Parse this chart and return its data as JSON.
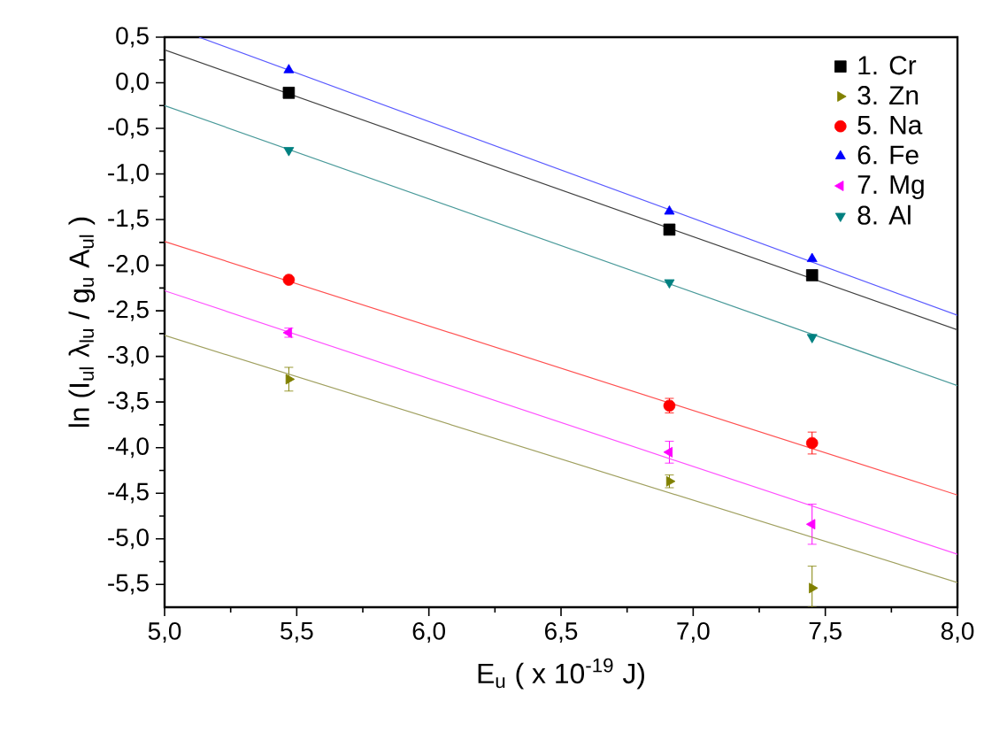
{
  "chart_data": {
    "type": "scatter",
    "xlabel": "E$_{u}$ ( x 10$^{-19}$ J)",
    "ylabel": "ln (I$_{ul}$ λ$_{lu}$ / g$_{u}$ A$_{ul}$ )",
    "xlim": [
      5.0,
      8.0
    ],
    "ylim": [
      -5.75,
      0.5
    ],
    "xticks": [
      {
        "value": 5.0,
        "label": "5,0"
      },
      {
        "value": 5.5,
        "label": "5,5"
      },
      {
        "value": 6.0,
        "label": "6,0"
      },
      {
        "value": 6.5,
        "label": "6,5"
      },
      {
        "value": 7.0,
        "label": "7,0"
      },
      {
        "value": 7.5,
        "label": "7,5"
      },
      {
        "value": 8.0,
        "label": "8,0"
      }
    ],
    "yticks": [
      {
        "value": 0.5,
        "label": "0,5"
      },
      {
        "value": 0.0,
        "label": "0,0"
      },
      {
        "value": -0.5,
        "label": "-0,5"
      },
      {
        "value": -1.0,
        "label": "-1,0"
      },
      {
        "value": -1.5,
        "label": "-1,5"
      },
      {
        "value": -2.0,
        "label": "-2,0"
      },
      {
        "value": -2.5,
        "label": "-2,5"
      },
      {
        "value": -3.0,
        "label": "-3,0"
      },
      {
        "value": -3.5,
        "label": "-3,5"
      },
      {
        "value": -4.0,
        "label": "-4,0"
      },
      {
        "value": -4.5,
        "label": "-4,5"
      },
      {
        "value": -5.0,
        "label": "-5,0"
      },
      {
        "value": -5.5,
        "label": "-5,5"
      }
    ],
    "grid": false,
    "legend": "top right",
    "series": [
      {
        "name": "1. Cr",
        "color": "#000000",
        "marker": "square",
        "x": [
          5.47,
          6.91,
          7.45
        ],
        "values": [
          -0.11,
          -1.61,
          -2.11
        ]
      },
      {
        "name": "3. Zn",
        "color": "#808000",
        "marker": "triangle-right",
        "x": [
          5.47,
          6.91,
          7.45
        ],
        "values": [
          -3.25,
          -4.37,
          -5.54
        ],
        "errors": [
          0.13,
          0.07,
          [
            -5.75,
            -5.3
          ]
        ]
      },
      {
        "name": "5. Na",
        "color": "#ff0000",
        "marker": "circle",
        "x": [
          5.47,
          6.91,
          7.45
        ],
        "values": [
          -2.16,
          -3.54,
          -3.95
        ],
        "errors": [
          null,
          0.08,
          0.12
        ]
      },
      {
        "name": "6. Fe",
        "color": "#0000ff",
        "marker": "triangle",
        "x": [
          5.47,
          6.91,
          7.45
        ],
        "values": [
          0.14,
          -1.41,
          -1.93
        ]
      },
      {
        "name": "7. Mg",
        "color": "#ff00ff",
        "marker": "triangle-left",
        "x": [
          5.47,
          6.91,
          7.45
        ],
        "values": [
          -2.74,
          -4.05,
          -4.84
        ],
        "errors": [
          0.05,
          0.12,
          0.22
        ]
      },
      {
        "name": "8. Al",
        "color": "#008080",
        "marker": "triangle-down",
        "x": [
          5.47,
          6.91,
          7.45
        ],
        "values": [
          -0.74,
          -2.19,
          -2.79
        ]
      },
      {
        "type": "line",
        "color": "#404040",
        "marker": "none",
        "x": [
          5.0,
          8.0
        ],
        "values": [
          0.36,
          -2.71
        ]
      },
      {
        "type": "line",
        "color": "#a0a060",
        "marker": "none",
        "x": [
          5.0,
          8.0
        ],
        "values": [
          -2.77,
          -5.48
        ]
      },
      {
        "type": "line",
        "color": "#ff5050",
        "marker": "none",
        "x": [
          5.0,
          8.0
        ],
        "values": [
          -1.74,
          -4.52
        ]
      },
      {
        "type": "line",
        "color": "#5a5aff",
        "marker": "none",
        "x": [
          5.13,
          8.0
        ],
        "values": [
          0.5,
          -2.55
        ]
      },
      {
        "type": "line",
        "color": "#ff50ff",
        "marker": "none",
        "x": [
          5.0,
          8.0
        ],
        "values": [
          -2.28,
          -5.17
        ]
      },
      {
        "type": "line",
        "color": "#4a9a9a",
        "marker": "none",
        "x": [
          5.0,
          8.0
        ],
        "values": [
          -0.25,
          -3.32
        ]
      }
    ]
  }
}
